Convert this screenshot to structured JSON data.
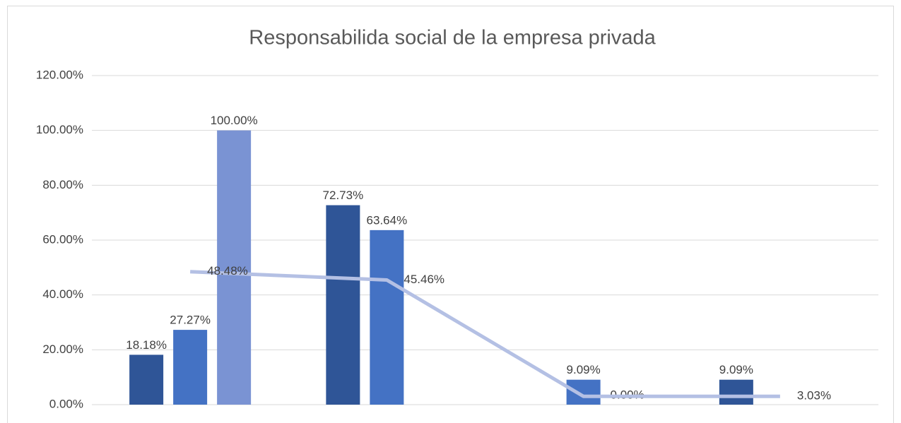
{
  "chart_data": {
    "type": "bar-line",
    "title": "Responsabilida social de la empresa privada",
    "categories": [
      null,
      null,
      null,
      null
    ],
    "series": [
      {
        "color": "#2f5597",
        "values": [
          18.18,
          72.73,
          null,
          9.09
        ],
        "value_labels": [
          "18.18%",
          "72.73%",
          null,
          "9.09%"
        ]
      },
      {
        "color": "#4472c4",
        "values": [
          27.27,
          63.64,
          9.09,
          null
        ],
        "value_labels": [
          "27.27%",
          "63.64%",
          "9.09%",
          null
        ]
      },
      {
        "color": "#7a93d3",
        "values": [
          100,
          null,
          0,
          null
        ],
        "value_labels": [
          "100.00%",
          null,
          "0.00%",
          null
        ]
      },
      {
        "type": "line",
        "color": "#b4c0e4",
        "values": [
          48.48,
          45.46,
          3.03,
          3.03
        ],
        "value_labels": [
          "48.48%",
          "45.46%",
          null,
          "3.03%"
        ]
      }
    ],
    "ylim": [
      0,
      120
    ],
    "yticks": [
      {
        "value": 0,
        "label": "0.00%"
      },
      {
        "value": 20,
        "label": "20.00%"
      },
      {
        "value": 40,
        "label": "40.00%"
      },
      {
        "value": 60,
        "label": "60.00%"
      },
      {
        "value": 80,
        "label": "80.00%"
      },
      {
        "value": 100,
        "label": "100.00%"
      },
      {
        "value": 120,
        "label": "120.00%"
      }
    ],
    "grid": true
  }
}
